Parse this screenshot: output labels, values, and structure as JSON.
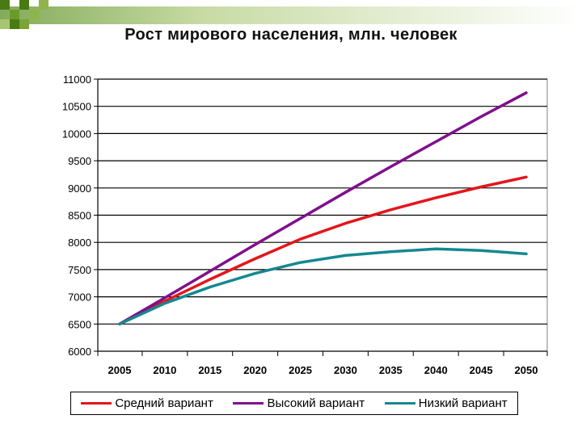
{
  "chart_data": {
    "type": "line",
    "title": "Рост мирового населения, млн. человек",
    "xlabel": "",
    "ylabel": "",
    "x_ticks": [
      "2005",
      "2010",
      "2015",
      "2020",
      "2025",
      "2030",
      "2035",
      "2040",
      "2045",
      "2050"
    ],
    "y_ticks": [
      "6000",
      "6500",
      "7000",
      "7500",
      "8000",
      "8500",
      "9000",
      "9500",
      "10000",
      "10500",
      "11000"
    ],
    "xlim": [
      2005,
      2050
    ],
    "ylim": [
      6000,
      11000
    ],
    "grid": "horizontal",
    "legend_position": "bottom",
    "x": [
      2005,
      2010,
      2015,
      2020,
      2025,
      2030,
      2035,
      2040,
      2045,
      2050
    ],
    "series": [
      {
        "name": "Средний вариант",
        "color": "#e3161c",
        "values": [
          6500,
          6920,
          7320,
          7700,
          8060,
          8350,
          8600,
          8820,
          9020,
          9200
        ]
      },
      {
        "name": "Высокий вариант",
        "color": "#800f8c",
        "values": [
          6500,
          6980,
          7470,
          7960,
          8440,
          8920,
          9390,
          9850,
          10310,
          10750
        ]
      },
      {
        "name": "Низкий вариант",
        "color": "#148890",
        "values": [
          6500,
          6880,
          7180,
          7430,
          7630,
          7760,
          7830,
          7880,
          7850,
          7790
        ]
      }
    ]
  }
}
